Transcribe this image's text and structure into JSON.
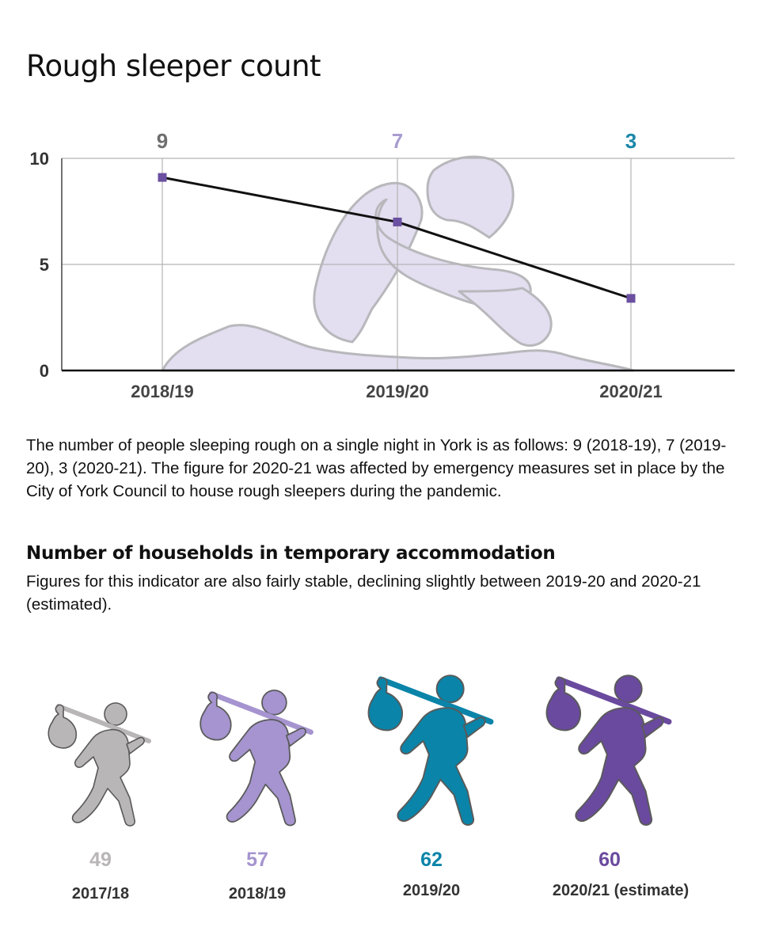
{
  "title": "Rough sleeper count",
  "chart_data": {
    "type": "line",
    "categories": [
      "2018/19",
      "2019/20",
      "2020/21"
    ],
    "values": [
      9,
      7,
      3
    ],
    "plotted_values": [
      9.1,
      7.0,
      3.4
    ],
    "data_labels": [
      "9",
      "7",
      "3"
    ],
    "data_label_colors": [
      "#6e6e6e",
      "#a99dd0",
      "#1a87a8"
    ],
    "marker_color": "#6b4fa0",
    "line_color": "#111111",
    "yticks": [
      "0",
      "5",
      "10"
    ],
    "ylim": [
      0,
      10
    ],
    "grid": true
  },
  "description": "The number of people sleeping rough on a single night in York is as follows: 9 (2018-19), 7 (2019-20), 3 (2020-21). The figure for 2020-21 was affected by emergency measures set in place by the City of York Council to house rough sleepers during the pandemic.",
  "households": {
    "title": "Number of households in temporary accommodation",
    "description": "Figures for this indicator are also fairly stable, declining slightly between  2019-20 and 2020-21 (estimated).",
    "items": [
      {
        "value": "49",
        "year": "2017/18",
        "color": "#b9b6b8",
        "icon": "walking-person-bindle-icon"
      },
      {
        "value": "57",
        "year": "2018/19",
        "color": "#a594cf",
        "icon": "walking-person-bindle-icon"
      },
      {
        "value": "62",
        "year": "2019/20",
        "color": "#0a84a8",
        "icon": "walking-person-bindle-icon"
      },
      {
        "value": "60",
        "year": "2020/21 (estimate)",
        "color": "#6a4a9e",
        "icon": "walking-person-bindle-icon"
      }
    ]
  }
}
